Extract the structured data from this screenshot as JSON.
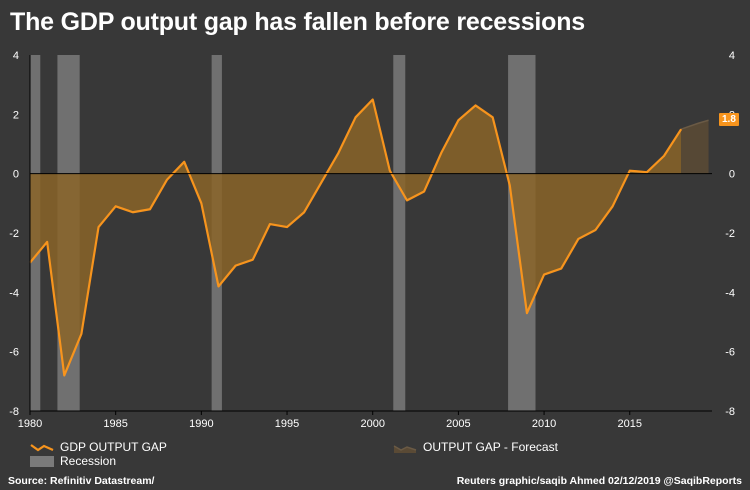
{
  "title": "The GDP output gap has fallen before recessions",
  "colors": {
    "background": "#383838",
    "line": "#f7941d",
    "area": "#8a6428",
    "forecast_area": "#5a4a35",
    "forecast_line": "#6a5a45",
    "recession": "#7a7a7a",
    "badge": "#f7941d"
  },
  "chart_data": {
    "type": "area",
    "x_ticks": [
      "1980",
      "1985",
      "1990",
      "1995",
      "2000",
      "2005",
      "2010",
      "2015"
    ],
    "y_ticks": [
      "4",
      "2",
      "0",
      "-2",
      "-4",
      "-6",
      "-8"
    ],
    "xlim": [
      1980,
      2019.8
    ],
    "ylim": [
      -8,
      4
    ],
    "grid": false,
    "series": [
      {
        "name": "GDP OUTPUT GAP",
        "x": [
          1980,
          1981,
          1982,
          1983,
          1984,
          1985,
          1986,
          1987,
          1988,
          1989,
          1990,
          1991,
          1992,
          1993,
          1994,
          1995,
          1996,
          1997,
          1998,
          1999,
          2000,
          2001,
          2002,
          2003,
          2004,
          2005,
          2006,
          2007,
          2008,
          2009,
          2010,
          2011,
          2012,
          2013,
          2014,
          2015,
          2016,
          2017,
          2018
        ],
        "values": [
          -3.0,
          -2.3,
          -6.8,
          -5.4,
          -1.8,
          -1.1,
          -1.3,
          -1.2,
          -0.2,
          0.4,
          -1.0,
          -3.8,
          -3.1,
          -2.9,
          -1.7,
          -1.8,
          -1.3,
          -0.3,
          0.7,
          1.9,
          2.5,
          0.1,
          -0.9,
          -0.6,
          0.7,
          1.8,
          2.3,
          1.9,
          -0.4,
          -4.7,
          -3.4,
          -3.2,
          -2.2,
          -1.9,
          -1.1,
          0.1,
          0.05,
          0.6,
          1.5
        ]
      },
      {
        "name": "OUTPUT GAP - Forecast",
        "x": [
          2018,
          2019,
          2019.6
        ],
        "values": [
          1.5,
          1.7,
          1.8
        ]
      }
    ],
    "recessions": [
      [
        1980.0,
        1980.6
      ],
      [
        1981.6,
        1982.9
      ],
      [
        1990.6,
        1991.2
      ],
      [
        2001.2,
        2001.9
      ],
      [
        2007.9,
        2009.5
      ]
    ],
    "last_value_label": "1.8"
  },
  "legend": {
    "gdp": "GDP OUTPUT GAP",
    "forecast": "OUTPUT GAP - Forecast",
    "recession": "Recession"
  },
  "footer": {
    "source": "Source: Refinitiv Datastream/",
    "credit": "Reuters graphic/saqib Ahmed 02/12/2019 @SaqibReports"
  }
}
